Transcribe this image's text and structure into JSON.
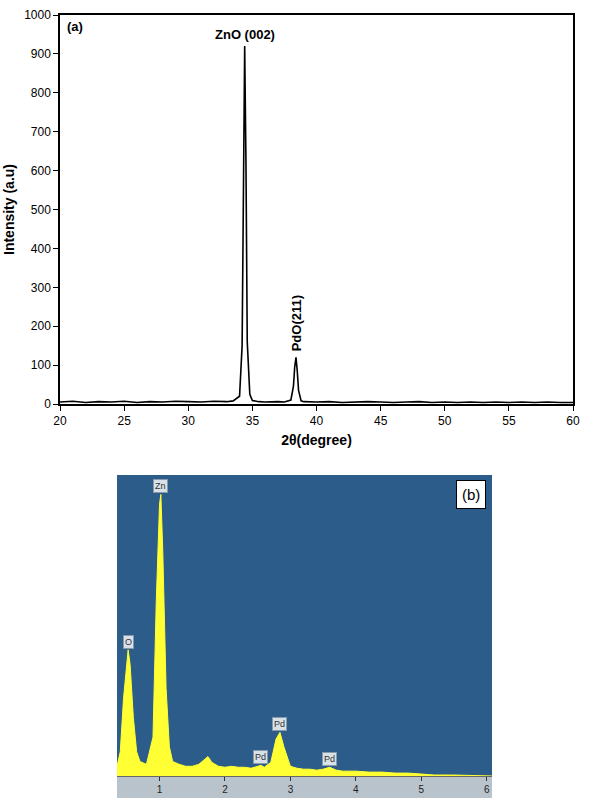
{
  "chart_data": [
    {
      "type": "line",
      "title": "(a)",
      "x_label": "2θ(degree)",
      "y_label": "Intensity (a.u)",
      "color": "#000000",
      "x": [
        20,
        21,
        22,
        23,
        24,
        25,
        26,
        27,
        28,
        29,
        30,
        31,
        32,
        33,
        33.5,
        34,
        34.2,
        34.3,
        34.4,
        34.5,
        34.6,
        34.8,
        35,
        35.5,
        36,
        37,
        37.5,
        38,
        38.2,
        38.3,
        38.4,
        38.5,
        38.6,
        38.8,
        39,
        40,
        41,
        42,
        43,
        44,
        45,
        46,
        47,
        48,
        49,
        50,
        51,
        52,
        53,
        54,
        55,
        56,
        57,
        58,
        59,
        60
      ],
      "values": [
        5,
        7,
        4,
        6,
        5,
        7,
        4,
        6,
        5,
        7,
        6,
        5,
        7,
        6,
        8,
        20,
        150,
        600,
        920,
        620,
        160,
        25,
        9,
        6,
        5,
        6,
        5,
        10,
        45,
        95,
        120,
        85,
        35,
        8,
        6,
        5,
        6,
        4,
        5,
        6,
        5,
        4,
        5,
        6,
        4,
        5,
        4,
        5,
        4,
        5,
        4,
        5,
        4,
        5,
        4,
        4
      ],
      "xlim": [
        20,
        60
      ],
      "xticks": [
        20,
        25,
        30,
        35,
        40,
        45,
        50,
        55,
        60
      ],
      "ylim": [
        0,
        1000
      ],
      "yticks": [
        0,
        100,
        200,
        300,
        400,
        500,
        600,
        700,
        800,
        900,
        1000
      ],
      "annotations": [
        {
          "text": "ZnO (002)",
          "x": 34.4,
          "y": 920
        },
        {
          "text": "PdO(211)",
          "x": 38.4,
          "y": 120
        }
      ]
    },
    {
      "type": "area",
      "title": "(b)",
      "color": "#ffff33",
      "tick_labels": "x",
      "x": [
        0.35,
        0.4,
        0.45,
        0.5,
        0.52,
        0.55,
        0.6,
        0.65,
        0.7,
        0.8,
        0.9,
        0.95,
        1.0,
        1.02,
        1.05,
        1.1,
        1.15,
        1.2,
        1.3,
        1.4,
        1.5,
        1.6,
        1.7,
        1.74,
        1.8,
        1.9,
        2.0,
        2.1,
        2.2,
        2.3,
        2.4,
        2.5,
        2.55,
        2.6,
        2.7,
        2.78,
        2.84,
        2.9,
        3.0,
        3.1,
        3.2,
        3.3,
        3.4,
        3.5,
        3.6,
        3.7,
        3.8,
        4.0,
        4.2,
        4.4,
        4.6,
        4.8,
        5.0,
        5.2,
        5.5,
        6.08
      ],
      "values": [
        10,
        25,
        80,
        120,
        130,
        115,
        60,
        25,
        15,
        12,
        40,
        180,
        280,
        290,
        230,
        90,
        30,
        15,
        12,
        10,
        10,
        12,
        18,
        20,
        14,
        10,
        9,
        10,
        9,
        9,
        8,
        10,
        11,
        9,
        14,
        38,
        45,
        30,
        10,
        8,
        7,
        7,
        6,
        7,
        9,
        6,
        5,
        5,
        4,
        4,
        3,
        3,
        2,
        1,
        1,
        0
      ],
      "xlim": [
        0.35,
        6.08
      ],
      "xticks": [
        1,
        2,
        3,
        4,
        5,
        6
      ],
      "ylim": [
        0,
        310
      ],
      "annotations": [
        {
          "text": "O",
          "x": 0.52,
          "y": 130
        },
        {
          "text": "Zn",
          "x": 1.02,
          "y": 290
        },
        {
          "text": "Pd",
          "x": 2.55,
          "y": 11
        },
        {
          "text": "Pd",
          "x": 2.84,
          "y": 45
        },
        {
          "text": "Pd",
          "x": 3.6,
          "y": 9
        }
      ]
    }
  ]
}
